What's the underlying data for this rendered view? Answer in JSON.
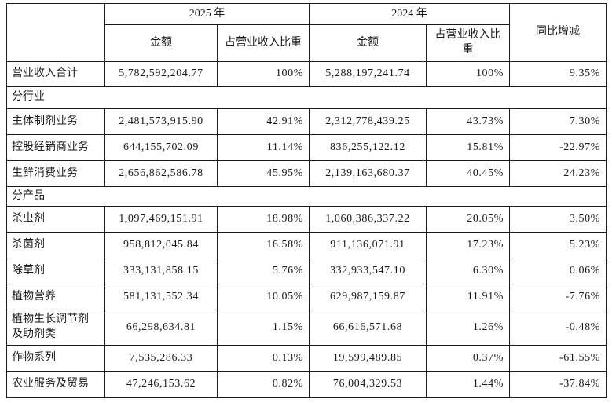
{
  "colors": {
    "header_bg": "#d4d4d4",
    "border": "#1a1a1a",
    "cell_bg": "#ffffff",
    "text": "#1a1a1a"
  },
  "table": {
    "headers": {
      "corner": "",
      "year_2025": "2025 年",
      "year_2024": "2024 年",
      "amount_2025": "金额",
      "ratio_2025": "占营业收入比重",
      "amount_2024": "金额",
      "ratio_2024": "占营业收入比重",
      "yoy": "同比增减"
    },
    "total_row": {
      "label": "营业收入合计",
      "amount_2025": "5,782,592,204.77",
      "ratio_2025": "100%",
      "amount_2024": "5,288,197,241.74",
      "ratio_2024": "100%",
      "yoy": "9.35%"
    },
    "sections": [
      {
        "title": "分行业",
        "rows": [
          {
            "label": "主体制剂业务",
            "amount_2025": "2,481,573,915.90",
            "ratio_2025": "42.91%",
            "amount_2024": "2,312,778,439.25",
            "ratio_2024": "43.73%",
            "yoy": "7.30%"
          },
          {
            "label": "控股经销商业务",
            "amount_2025": "644,155,702.09",
            "ratio_2025": "11.14%",
            "amount_2024": "836,255,122.12",
            "ratio_2024": "15.81%",
            "yoy": "-22.97%"
          },
          {
            "label": "生鲜消费业务",
            "amount_2025": "2,656,862,586.78",
            "ratio_2025": "45.95%",
            "amount_2024": "2,139,163,680.37",
            "ratio_2024": "40.45%",
            "yoy": "24.23%"
          }
        ]
      },
      {
        "title": "分产品",
        "rows": [
          {
            "label": "杀虫剂",
            "amount_2025": "1,097,469,151.91",
            "ratio_2025": "18.98%",
            "amount_2024": "1,060,386,337.22",
            "ratio_2024": "20.05%",
            "yoy": "3.50%"
          },
          {
            "label": "杀菌剂",
            "amount_2025": "958,812,045.84",
            "ratio_2025": "16.58%",
            "amount_2024": "911,136,071.91",
            "ratio_2024": "17.23%",
            "yoy": "5.23%"
          },
          {
            "label": "除草剂",
            "amount_2025": "333,131,858.15",
            "ratio_2025": "5.76%",
            "amount_2024": "332,933,547.10",
            "ratio_2024": "6.30%",
            "yoy": "0.06%"
          },
          {
            "label": "植物营养",
            "amount_2025": "581,131,552.34",
            "ratio_2025": "10.05%",
            "amount_2024": "629,987,159.87",
            "ratio_2024": "11.91%",
            "yoy": "-7.76%"
          },
          {
            "label": "植物生长调节剂及助剂类",
            "amount_2025": "66,298,634.81",
            "ratio_2025": "1.15%",
            "amount_2024": "66,616,571.68",
            "ratio_2024": "1.26%",
            "yoy": "-0.48%"
          },
          {
            "label": "作物系列",
            "amount_2025": "7,535,286.33",
            "ratio_2025": "0.13%",
            "amount_2024": "19,599,489.85",
            "ratio_2024": "0.37%",
            "yoy": "-61.55%"
          },
          {
            "label": "农业服务及贸易",
            "amount_2025": "47,246,153.62",
            "ratio_2025": "0.82%",
            "amount_2024": "76,004,329.53",
            "ratio_2024": "1.44%",
            "yoy": "-37.84%"
          }
        ]
      }
    ]
  }
}
